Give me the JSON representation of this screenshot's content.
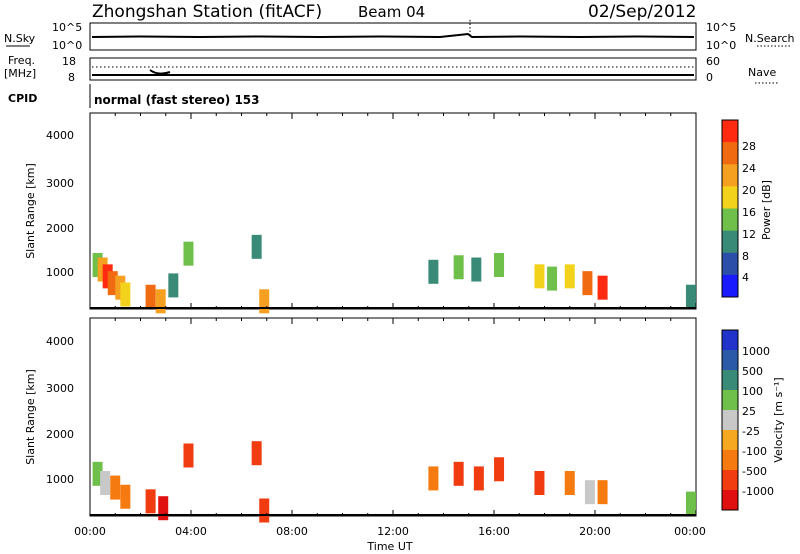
{
  "header": {
    "station": "Zhongshan Station (fitACF)",
    "beam": "Beam 04",
    "date": "02/Sep/2012"
  },
  "top_panels": {
    "nsky_label": "N.Sky",
    "nsky_ticks": [
      "10^5",
      "10^0"
    ],
    "nsearch_label": "N.Search",
    "nsearch_ticks": [
      "10^5",
      "10^0"
    ],
    "freq_label": "Freq.",
    "freq_unit": "[MHz]",
    "freq_ticks": [
      "18",
      "8"
    ],
    "nave_label": "Nave",
    "nave_ticks": [
      "60",
      "0"
    ],
    "cpid_label": "CPID",
    "cpid_text": "normal (fast stereo) 153"
  },
  "colors": {
    "power_scale": [
      "#1a1aff",
      "#2b4fa8",
      "#3a8a78",
      "#6fc04a",
      "#f2d21a",
      "#f5a021",
      "#f06a12",
      "#ff2a10"
    ],
    "velocity_scale": [
      "#e01010",
      "#f03c10",
      "#f57a10",
      "#f5a820",
      "#c8c8c8",
      "#6fc04a",
      "#3a8a78",
      "#2b5aa8",
      "#2233cc"
    ]
  },
  "chart_data": [
    {
      "type": "heatmap",
      "title": "Power",
      "ylabel": "Slant Range [km]",
      "xlabel": "",
      "x_ticks": [
        "00:00",
        "04:00",
        "08:00",
        "12:00",
        "16:00",
        "20:00",
        "00:00"
      ],
      "xlim_hours": [
        0,
        24
      ],
      "y_ticks": [
        "4000",
        "3000",
        "2000",
        "1000"
      ],
      "ylim": [
        180,
        4500
      ],
      "colorbar": {
        "label": "Power [dB]",
        "ticks": [
          "28",
          "24",
          "20",
          "16",
          "12",
          "8",
          "4"
        ],
        "range": [
          0,
          32
        ]
      },
      "cells": [
        {
          "t": 0.3,
          "r": 1150,
          "v": 12
        },
        {
          "t": 0.5,
          "r": 1050,
          "v": 20
        },
        {
          "t": 0.7,
          "r": 900,
          "v": 28
        },
        {
          "t": 0.9,
          "r": 750,
          "v": 24
        },
        {
          "t": 1.2,
          "r": 650,
          "v": 20
        },
        {
          "t": 1.4,
          "r": 500,
          "v": 16
        },
        {
          "t": 2.4,
          "r": 450,
          "v": 24
        },
        {
          "t": 2.8,
          "r": 350,
          "v": 20
        },
        {
          "t": 3.3,
          "r": 700,
          "v": 8
        },
        {
          "t": 3.9,
          "r": 1400,
          "v": 12
        },
        {
          "t": 6.6,
          "r": 1550,
          "v": 8
        },
        {
          "t": 6.9,
          "r": 350,
          "v": 20
        },
        {
          "t": 13.6,
          "r": 1000,
          "v": 8
        },
        {
          "t": 14.6,
          "r": 1100,
          "v": 12
        },
        {
          "t": 15.3,
          "r": 1050,
          "v": 8
        },
        {
          "t": 16.2,
          "r": 1150,
          "v": 12
        },
        {
          "t": 17.8,
          "r": 900,
          "v": 16
        },
        {
          "t": 18.3,
          "r": 850,
          "v": 12
        },
        {
          "t": 19.0,
          "r": 900,
          "v": 16
        },
        {
          "t": 19.7,
          "r": 750,
          "v": 24
        },
        {
          "t": 20.3,
          "r": 650,
          "v": 28
        },
        {
          "t": 23.8,
          "r": 450,
          "v": 8
        }
      ]
    },
    {
      "type": "heatmap",
      "title": "Velocity",
      "ylabel": "Slant Range [km]",
      "xlabel": "Time UT",
      "x_ticks": [
        "00:00",
        "04:00",
        "08:00",
        "12:00",
        "16:00",
        "20:00",
        "00:00"
      ],
      "xlim_hours": [
        0,
        24
      ],
      "y_ticks": [
        "4000",
        "3000",
        "2000",
        "1000"
      ],
      "ylim": [
        180,
        4500
      ],
      "colorbar": {
        "label": "Velocity [m s⁻¹]",
        "ticks": [
          "1000",
          "500",
          "100",
          "25",
          "-25",
          "-100",
          "-500",
          "-1000"
        ],
        "range": [
          -1200,
          1200
        ]
      },
      "cells": [
        {
          "t": 0.3,
          "r": 1100,
          "v": 100
        },
        {
          "t": 0.6,
          "r": 900,
          "v": 25
        },
        {
          "t": 1.0,
          "r": 800,
          "v": -100
        },
        {
          "t": 1.4,
          "r": 600,
          "v": -100
        },
        {
          "t": 2.4,
          "r": 500,
          "v": -500
        },
        {
          "t": 2.9,
          "r": 350,
          "v": -1000
        },
        {
          "t": 3.9,
          "r": 1500,
          "v": -500
        },
        {
          "t": 6.6,
          "r": 1550,
          "v": -500
        },
        {
          "t": 6.9,
          "r": 300,
          "v": -500
        },
        {
          "t": 13.6,
          "r": 1000,
          "v": -100
        },
        {
          "t": 14.6,
          "r": 1100,
          "v": -500
        },
        {
          "t": 15.4,
          "r": 1000,
          "v": -500
        },
        {
          "t": 16.2,
          "r": 1200,
          "v": -500
        },
        {
          "t": 17.8,
          "r": 900,
          "v": -500
        },
        {
          "t": 19.0,
          "r": 900,
          "v": -100
        },
        {
          "t": 19.8,
          "r": 700,
          "v": 25
        },
        {
          "t": 20.3,
          "r": 700,
          "v": -100
        },
        {
          "t": 23.8,
          "r": 450,
          "v": 100
        }
      ]
    }
  ]
}
